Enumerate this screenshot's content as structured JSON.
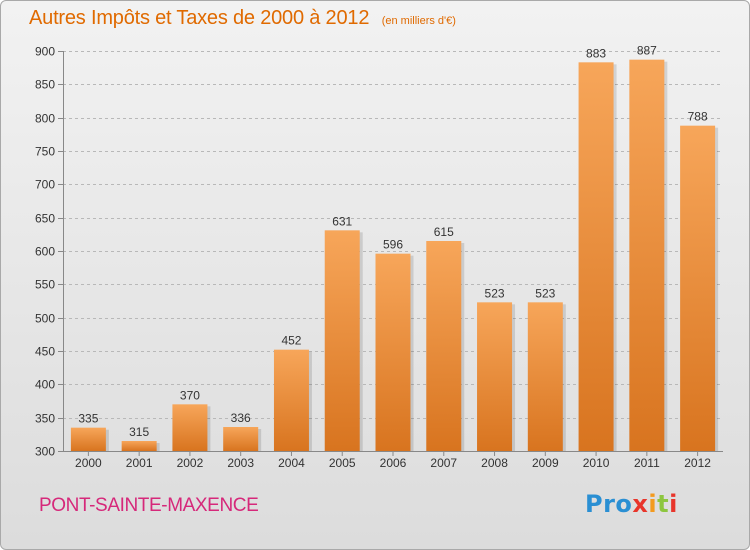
{
  "title": "Autres Impôts et Taxes de 2000 à 2012",
  "unit": "(en milliers d'€)",
  "city": "PONT-SAINTE-MAXENCE",
  "logo": {
    "text": "Proxiti"
  },
  "colors": {
    "title": "#e06a00",
    "city": "#d6287a",
    "bar_top": "#f7a65a",
    "bar_bottom": "#d8741f",
    "grid": "#b8b8b8",
    "axis_text": "#333333"
  },
  "chart_data": {
    "type": "bar",
    "title": "Autres Impôts et Taxes de 2000 à 2012",
    "xlabel": "",
    "ylabel": "",
    "categories": [
      "2000",
      "2001",
      "2002",
      "2003",
      "2004",
      "2005",
      "2006",
      "2007",
      "2008",
      "2009",
      "2010",
      "2011",
      "2012"
    ],
    "values": [
      335,
      315,
      370,
      336,
      452,
      631,
      596,
      615,
      523,
      523,
      883,
      887,
      788
    ],
    "ylim": [
      300,
      900
    ],
    "yticks": [
      300,
      350,
      400,
      450,
      500,
      550,
      600,
      650,
      700,
      750,
      800,
      850,
      900
    ],
    "grid": true,
    "legend": "none"
  }
}
